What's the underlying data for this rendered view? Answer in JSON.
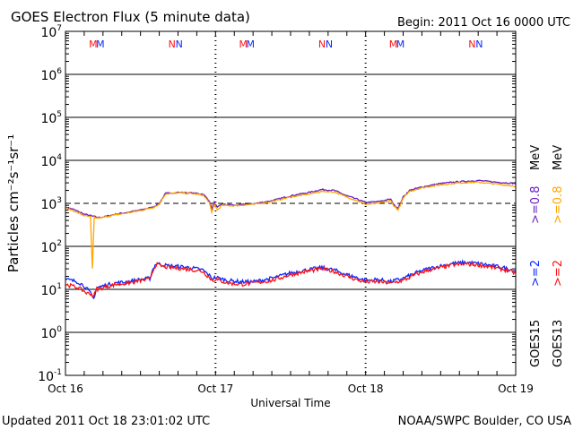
{
  "chart_data": {
    "type": "line",
    "title": "GOES Electron Flux (5 minute data)",
    "begin_label": "Begin: 2011 Oct 16 0000 UTC",
    "xlabel": "Universal Time",
    "ylabel": "Particles cm⁻²s⁻¹sr⁻¹",
    "y_scale": "log",
    "ylim": [
      0.1,
      10000000
    ],
    "y_ticks": [
      {
        "base": "10",
        "exp": "7"
      },
      {
        "base": "10",
        "exp": "6"
      },
      {
        "base": "10",
        "exp": "5"
      },
      {
        "base": "10",
        "exp": "4"
      },
      {
        "base": "10",
        "exp": "3"
      },
      {
        "base": "10",
        "exp": "2"
      },
      {
        "base": "10",
        "exp": "1"
      },
      {
        "base": "10",
        "exp": "0"
      },
      {
        "base": "10",
        "exp": "-1"
      }
    ],
    "xlim_hours": [
      0,
      72
    ],
    "x_ticks": [
      {
        "hour": 0,
        "label": "Oct 16"
      },
      {
        "hour": 24,
        "label": "Oct 17"
      },
      {
        "hour": 48,
        "label": "Oct 18"
      },
      {
        "hour": 72,
        "label": "Oct 19"
      }
    ],
    "threshold": {
      "value": 1000,
      "style": "dashed"
    },
    "series": [
      {
        "name": "GOES15 >=0.8 MeV",
        "color": "#6a1fbf",
        "x": [
          0,
          1,
          2,
          3,
          4,
          4.3,
          4.6,
          5,
          6,
          8,
          10,
          12,
          14,
          15,
          16,
          18,
          20,
          22,
          23,
          23.4,
          23.8,
          24.3,
          25,
          27,
          30,
          33,
          36,
          39,
          41,
          43,
          45,
          47,
          48,
          50,
          52,
          52.6,
          53.2,
          54,
          55,
          57,
          60,
          63,
          66,
          69,
          72
        ],
        "y": [
          800,
          750,
          650,
          560,
          520,
          500,
          500,
          470,
          480,
          560,
          620,
          700,
          820,
          1000,
          1700,
          1800,
          1750,
          1650,
          1150,
          750,
          1050,
          800,
          950,
          900,
          980,
          1150,
          1500,
          1800,
          2100,
          2000,
          1500,
          1200,
          1050,
          1100,
          1250,
          900,
          780,
          1400,
          2000,
          2400,
          2900,
          3200,
          3400,
          3100,
          2900
        ]
      },
      {
        "name": "GOES13 >=0.8 MeV",
        "color": "#ffa500",
        "x": [
          0,
          1,
          2,
          3,
          4,
          4.3,
          4.6,
          5,
          6,
          8,
          10,
          12,
          14,
          15,
          16,
          18,
          20,
          22,
          23,
          23.4,
          23.8,
          24.3,
          25,
          27,
          30,
          33,
          36,
          39,
          41,
          43,
          45,
          47,
          48,
          50,
          52,
          52.6,
          53.2,
          54,
          55,
          57,
          60,
          63,
          66,
          69,
          72
        ],
        "y": [
          780,
          700,
          600,
          520,
          480,
          30,
          480,
          450,
          470,
          540,
          600,
          680,
          800,
          950,
          1650,
          1750,
          1700,
          1550,
          1050,
          600,
          950,
          700,
          900,
          880,
          950,
          1100,
          1400,
          1650,
          1900,
          1850,
          1400,
          1100,
          950,
          1000,
          1150,
          850,
          700,
          1300,
          1900,
          2300,
          2700,
          3000,
          3100,
          2800,
          2500
        ]
      },
      {
        "name": "GOES15 >=2 MeV",
        "color": "#0a28ff",
        "x": [
          0,
          1,
          2,
          3,
          3.5,
          4,
          4.5,
          5,
          6,
          8,
          10,
          12,
          13.5,
          14,
          14.5,
          16,
          18,
          20,
          22,
          23.5,
          24,
          26,
          28,
          30,
          33,
          36,
          39,
          41,
          43,
          45,
          47,
          48,
          50,
          52,
          54,
          56,
          58,
          60,
          62,
          64,
          66,
          68,
          70,
          72
        ],
        "y": [
          17,
          16,
          15,
          12,
          10,
          8,
          6,
          11,
          12,
          14,
          15,
          17,
          18,
          30,
          40,
          36,
          34,
          32,
          28,
          18,
          19,
          16,
          15,
          15,
          18,
          24,
          29,
          32,
          28,
          22,
          18,
          16,
          17,
          15,
          18,
          24,
          30,
          35,
          40,
          42,
          40,
          36,
          32,
          27
        ]
      },
      {
        "name": "GOES13 >=2 MeV",
        "color": "#ff1010",
        "x": [
          0,
          1,
          2,
          3,
          3.5,
          4,
          4.5,
          5,
          6,
          8,
          10,
          12,
          13.5,
          14,
          14.5,
          16,
          18,
          20,
          22,
          23.5,
          24,
          26,
          28,
          30,
          33,
          36,
          39,
          41,
          43,
          45,
          47,
          48,
          50,
          52,
          54,
          56,
          58,
          60,
          62,
          64,
          66,
          68,
          70,
          72
        ],
        "y": [
          13,
          12,
          11,
          9,
          8,
          8,
          7,
          10,
          11,
          13,
          14,
          16,
          17,
          28,
          38,
          33,
          31,
          29,
          26,
          16,
          17,
          14,
          13,
          14,
          16,
          22,
          27,
          30,
          26,
          20,
          16,
          15,
          15,
          14,
          16,
          22,
          28,
          32,
          37,
          39,
          37,
          33,
          29,
          24
        ]
      }
    ],
    "annotations": [
      {
        "hour": 5.0,
        "label": "M"
      },
      {
        "hour": 17.6,
        "label": "N"
      },
      {
        "hour": 29.0,
        "label": "M"
      },
      {
        "hour": 41.6,
        "label": "N"
      },
      {
        "hour": 53.0,
        "label": "M"
      },
      {
        "hour": 65.6,
        "label": "N"
      }
    ],
    "legend": {
      "placement": "right",
      "goes15": {
        "sat": "GOES15",
        "low": ">=2",
        "high": ">=0.8",
        "unit": "MeV"
      },
      "goes13": {
        "sat": "GOES13",
        "low": ">=2",
        "high": ">=0.8",
        "unit": "MeV"
      }
    }
  },
  "footer": {
    "updated": "Updated 2011 Oct 18 23:01:02 UTC",
    "source": "NOAA/SWPC Boulder, CO USA"
  },
  "colors": {
    "red": "#ff1010",
    "blue": "#0a28ff",
    "purple": "#6a1fbf",
    "orange": "#ffa500"
  }
}
